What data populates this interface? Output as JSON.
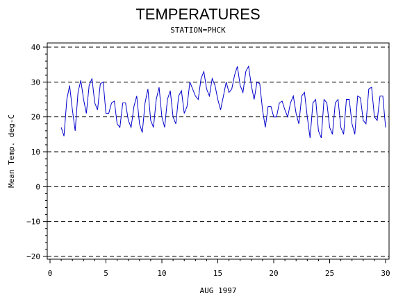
{
  "chart_data": {
    "type": "line",
    "title": "TEMPERATURES",
    "subtitle": "STATION=PHCK",
    "xlabel": "AUG 1997",
    "ylabel": "Mean Temp. deg-C",
    "xlim": [
      0,
      30
    ],
    "ylim": [
      -20,
      40
    ],
    "xticks": [
      0,
      5,
      10,
      15,
      20,
      25,
      30
    ],
    "yticks": [
      -20,
      -10,
      0,
      10,
      20,
      30,
      40
    ],
    "grid": "horizontal-dashed",
    "series": [
      {
        "color": "#0000cc",
        "x": [
          1.0,
          1.25,
          1.5,
          1.75,
          2.0,
          2.25,
          2.5,
          2.75,
          3.0,
          3.25,
          3.5,
          3.75,
          4.0,
          4.25,
          4.5,
          4.75,
          5.0,
          5.25,
          5.5,
          5.75,
          6.0,
          6.25,
          6.5,
          6.75,
          7.0,
          7.25,
          7.5,
          7.75,
          8.0,
          8.25,
          8.5,
          8.75,
          9.0,
          9.25,
          9.5,
          9.75,
          10.0,
          10.25,
          10.5,
          10.75,
          11.0,
          11.25,
          11.5,
          11.75,
          12.0,
          12.25,
          12.5,
          12.75,
          13.0,
          13.25,
          13.5,
          13.75,
          14.0,
          14.25,
          14.5,
          14.75,
          15.0,
          15.25,
          15.5,
          15.75,
          16.0,
          16.25,
          16.5,
          16.75,
          17.0,
          17.25,
          17.5,
          17.75,
          18.0,
          18.25,
          18.5,
          18.75,
          19.0,
          19.25,
          19.5,
          19.75,
          20.0,
          20.25,
          20.5,
          20.75,
          21.0,
          21.25,
          21.5,
          21.75,
          22.0,
          22.25,
          22.5,
          22.75,
          23.0,
          23.25,
          23.5,
          23.75,
          24.0,
          24.25,
          24.5,
          24.75,
          25.0,
          25.25,
          25.5,
          25.75,
          26.0,
          26.25,
          26.5,
          26.75,
          27.0,
          27.25,
          27.5,
          27.75,
          28.0,
          28.25,
          28.5,
          28.75,
          29.0,
          29.25,
          29.5,
          29.75,
          30.0
        ],
        "values": [
          17,
          14.5,
          25,
          29,
          22,
          16,
          27,
          30.5,
          25,
          21,
          29,
          31,
          24,
          22,
          29.5,
          30,
          21,
          21,
          24,
          24.5,
          18,
          17,
          24,
          24,
          19,
          17,
          23,
          26,
          18,
          15.5,
          24,
          28,
          19,
          17,
          25,
          28.5,
          20,
          17,
          25,
          27.5,
          20,
          18,
          26,
          27.5,
          21,
          23,
          30,
          28,
          26,
          25,
          31,
          33,
          28,
          26,
          31,
          29,
          25,
          22,
          26,
          30,
          27,
          28,
          32,
          34.5,
          29,
          27,
          33,
          34.5,
          29,
          25,
          30,
          29.5,
          22,
          17,
          23,
          23,
          20,
          20,
          24,
          24.5,
          22,
          20,
          24,
          26,
          21,
          18,
          26,
          27,
          20,
          14,
          24,
          25,
          16,
          14,
          25,
          24,
          17,
          15,
          24,
          25,
          17,
          15,
          25,
          25,
          18,
          15,
          26,
          25.5,
          19,
          18,
          28,
          28.5,
          20,
          19,
          26,
          26,
          17
        ]
      }
    ]
  }
}
